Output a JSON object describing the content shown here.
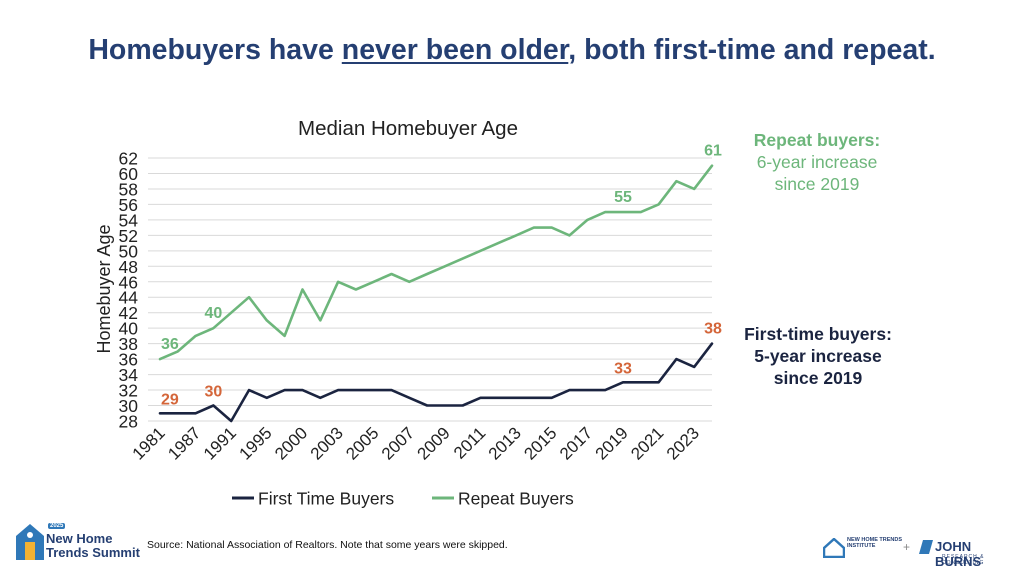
{
  "slide": {
    "title_pre": "Homebuyers have ",
    "title_emph": "never been older",
    "title_post": ", both first-time and repeat.",
    "source": "Source: National Association of Realtors. Note that some years were skipped."
  },
  "callouts": {
    "repeat": {
      "heading": "Repeat buyers:",
      "line1": "6-year increase",
      "line2": "since 2019"
    },
    "first": {
      "heading": "First-time buyers:",
      "line1": "5-year increase",
      "line2": "since 2019"
    }
  },
  "logos": {
    "summit_year": "2025",
    "summit_line1": "New Home",
    "summit_line2": "Trends Summit",
    "nht_line1": "NEW HOME TRENDS",
    "nht_line2": "INSTITUTE",
    "plus": "+",
    "jbrc_name": "JOHN BURNS",
    "jbrc_sub": "RESEARCH & CONSULTING"
  },
  "colors": {
    "title": "#253f72",
    "first_time": "#1b2440",
    "repeat": "#6db67b",
    "highlight_label": "#d4663a",
    "grid": "#d9d9d9"
  },
  "chart_data": {
    "type": "line",
    "title": "Median Homebuyer Age",
    "ylabel": "Homebuyer Age",
    "ylim": [
      28,
      62
    ],
    "yticks": [
      28,
      30,
      32,
      34,
      36,
      38,
      40,
      42,
      44,
      46,
      48,
      50,
      52,
      54,
      56,
      58,
      60,
      62
    ],
    "x": [
      "1981",
      "1985",
      "1987",
      "1989",
      "1991",
      "1993",
      "1995",
      "1997",
      "2000",
      "2001",
      "2003",
      "2004",
      "2005",
      "2006",
      "2007",
      "2008",
      "2009",
      "2010",
      "2011",
      "2012",
      "2013",
      "2014",
      "2015",
      "2016",
      "2017",
      "2018",
      "2019",
      "2020",
      "2021",
      "2022",
      "2023",
      "2024"
    ],
    "xtick_labels": [
      "1981",
      "1987",
      "1991",
      "1995",
      "2000",
      "2003",
      "2005",
      "2007",
      "2009",
      "2011",
      "2013",
      "2015",
      "2017",
      "2019",
      "2021",
      "2023"
    ],
    "grid": "horizontal",
    "legend": "bottom",
    "series": [
      {
        "name": "First Time Buyers",
        "values": [
          29,
          29,
          29,
          30,
          28,
          32,
          31,
          32,
          32,
          31,
          32,
          32,
          32,
          32,
          31,
          30,
          30,
          30,
          31,
          31,
          31,
          31,
          31,
          32,
          32,
          32,
          33,
          33,
          33,
          36,
          35,
          38
        ]
      },
      {
        "name": "Repeat Buyers",
        "values": [
          36,
          37,
          39,
          40,
          42,
          44,
          41,
          39,
          45,
          41,
          46,
          45,
          46,
          47,
          46,
          47,
          48,
          49,
          50,
          51,
          52,
          53,
          53,
          52,
          54,
          55,
          55,
          55,
          56,
          59,
          58,
          61
        ]
      }
    ],
    "annotations": [
      {
        "series": 0,
        "x": "1981",
        "text": "29"
      },
      {
        "series": 0,
        "x": "1989",
        "text": "30"
      },
      {
        "series": 0,
        "x": "2019",
        "text": "33"
      },
      {
        "series": 0,
        "x": "2024",
        "text": "38"
      },
      {
        "series": 1,
        "x": "1981",
        "text": "36"
      },
      {
        "series": 1,
        "x": "1989",
        "text": "40"
      },
      {
        "series": 1,
        "x": "2019",
        "text": "55"
      },
      {
        "series": 1,
        "x": "2024",
        "text": "61"
      }
    ]
  }
}
